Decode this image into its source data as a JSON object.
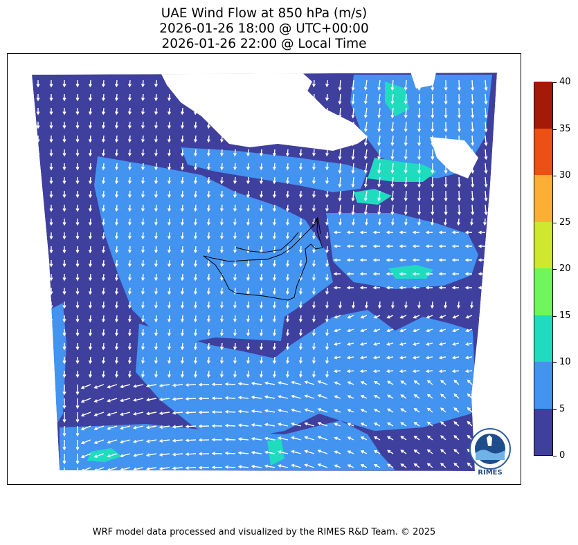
{
  "title": {
    "line1": "UAE Wind Flow at 850 hPa (m/s)",
    "line2": "2026-01-26 18:00 @ UTC+00:00",
    "line3": "2026-01-26 22:00 @ Local Time"
  },
  "colorbar": {
    "levels": [
      0,
      5,
      10,
      15,
      20,
      25,
      30,
      35,
      40
    ],
    "labels": [
      "0",
      "5",
      "10",
      "15",
      "20",
      "25",
      "30",
      "35",
      "40"
    ],
    "colors": [
      "#3f3f9e",
      "#4393f0",
      "#1fdcbf",
      "#70f55d",
      "#cfe82f",
      "#fdae35",
      "#ec5014",
      "#a51a06"
    ]
  },
  "map": {
    "background_color": "#3f3f9e",
    "moderate_color": "#4393f0",
    "strong_color": "#1fdcbf",
    "vector_color": "#ffffff",
    "border_color": "#000000"
  },
  "logo": {
    "text": "RIMES"
  },
  "footer": {
    "text": "WRF model data processed and visualized by the RIMES R&D Team. © 2025"
  }
}
